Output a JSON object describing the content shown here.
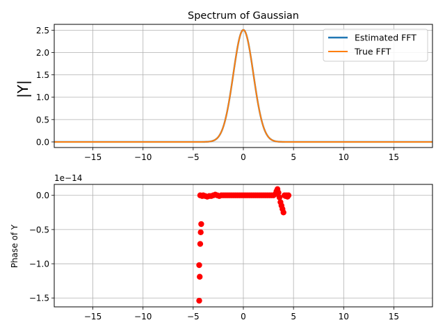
{
  "chart_data": [
    {
      "type": "line",
      "title": "Spectrum of Gaussian",
      "xlabel": "",
      "ylabel": "|Y|",
      "xlim": [
        -18.85,
        18.85
      ],
      "ylim": [
        -0.125,
        2.63
      ],
      "xticks": [
        -15,
        -10,
        -5,
        0,
        5,
        10,
        15
      ],
      "xtick_labels": [
        "−15",
        "−10",
        "−5",
        "0",
        "5",
        "10",
        "15"
      ],
      "yticks": [
        0.0,
        0.5,
        1.0,
        1.5,
        2.0,
        2.5
      ],
      "ytick_labels": [
        "0.0",
        "0.5",
        "1.0",
        "1.5",
        "2.0",
        "2.5"
      ],
      "grid": true,
      "legend_position": "top-right",
      "curve": {
        "kind": "gaussian",
        "peak": 2.5066,
        "center": 0,
        "sigma": 1
      },
      "series": [
        {
          "name": "Estimated FFT",
          "color": "#1f77b4"
        },
        {
          "name": "True FFT",
          "color": "#ff7f0e"
        }
      ]
    },
    {
      "type": "scatter",
      "title": "",
      "xlabel": "",
      "ylabel": "Phase of Y",
      "scale_label": "1e−14",
      "xlim": [
        -18.85,
        18.85
      ],
      "ylim": [
        -1.63,
        0.16
      ],
      "xticks": [
        -15,
        -10,
        -5,
        0,
        5,
        10,
        15
      ],
      "xtick_labels": [
        "−15",
        "−10",
        "−5",
        "0",
        "5",
        "10",
        "15"
      ],
      "yticks": [
        -1.5,
        -1.0,
        -0.5,
        0.0
      ],
      "ytick_labels": [
        "−1.5",
        "−1.0",
        "−0.5",
        "0.0"
      ],
      "grid": true,
      "marker_color": "#ff0000",
      "points": [
        [
          -4.4,
          -1.54
        ],
        [
          -4.35,
          -1.19
        ],
        [
          -4.4,
          -1.02
        ],
        [
          -4.3,
          -0.71
        ],
        [
          -4.25,
          -0.54
        ],
        [
          -4.2,
          -0.42
        ],
        [
          -4.3,
          0.0
        ],
        [
          -4.1,
          -0.01
        ],
        [
          -4.0,
          0.0
        ],
        [
          -3.8,
          -0.01
        ],
        [
          -3.6,
          -0.02
        ],
        [
          -3.4,
          -0.01
        ],
        [
          -3.2,
          -0.01
        ],
        [
          -3.0,
          0.0
        ],
        [
          -2.8,
          0.01
        ],
        [
          -2.6,
          0.0
        ],
        [
          -2.4,
          -0.01
        ],
        [
          -2.2,
          0.0
        ],
        [
          -2.0,
          0.0
        ],
        [
          -1.8,
          0.0
        ],
        [
          -1.6,
          0.0
        ],
        [
          -1.4,
          0.0
        ],
        [
          -1.2,
          0.0
        ],
        [
          -1.0,
          0.0
        ],
        [
          -0.8,
          0.0
        ],
        [
          -0.6,
          0.0
        ],
        [
          -0.4,
          0.0
        ],
        [
          -0.2,
          0.0
        ],
        [
          0.0,
          0.0
        ],
        [
          0.2,
          0.0
        ],
        [
          0.4,
          0.0
        ],
        [
          0.6,
          0.0
        ],
        [
          0.8,
          0.0
        ],
        [
          1.0,
          0.0
        ],
        [
          1.2,
          0.0
        ],
        [
          1.4,
          0.0
        ],
        [
          1.6,
          0.0
        ],
        [
          1.8,
          0.0
        ],
        [
          2.0,
          0.0
        ],
        [
          2.2,
          0.0
        ],
        [
          2.4,
          0.0
        ],
        [
          2.6,
          0.0
        ],
        [
          2.8,
          0.0
        ],
        [
          3.0,
          0.0
        ],
        [
          3.2,
          0.02
        ],
        [
          3.3,
          0.06
        ],
        [
          3.4,
          0.09
        ],
        [
          3.5,
          0.04
        ],
        [
          3.6,
          -0.03
        ],
        [
          3.7,
          -0.1
        ],
        [
          3.8,
          -0.15
        ],
        [
          3.9,
          -0.2
        ],
        [
          4.0,
          -0.25
        ],
        [
          4.1,
          0.0
        ],
        [
          4.2,
          -0.01
        ],
        [
          4.3,
          0.0
        ],
        [
          4.4,
          -0.02
        ],
        [
          4.5,
          0.0
        ]
      ]
    }
  ]
}
